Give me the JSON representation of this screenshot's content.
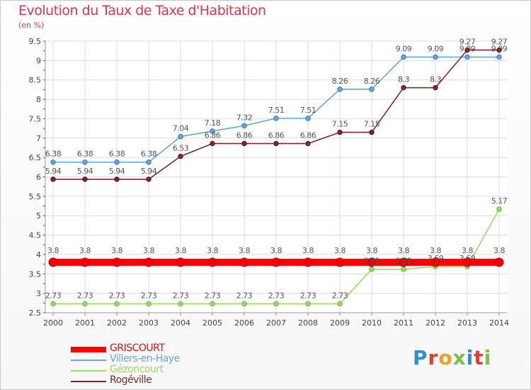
{
  "title": "Evolution du Taux de Taxe d'Habitation",
  "unit": "(en %)",
  "logo": [
    "P",
    "r",
    "o",
    "x",
    "i",
    "t",
    "i"
  ],
  "logo_colors": [
    "#2f8fd6",
    "#e8382f",
    "#f0a020",
    "#7ac143",
    "#2f8fd6",
    "#e8382f",
    "#7ac143"
  ],
  "chart_data": {
    "type": "line",
    "x": [
      "2000",
      "2001",
      "2002",
      "2003",
      "2004",
      "2005",
      "2006",
      "2007",
      "2008",
      "2009",
      "2010",
      "2011",
      "2012",
      "2013",
      "2014"
    ],
    "ylim": [
      2.5,
      9.5
    ],
    "yticks": [
      "2.5",
      "3",
      "3.5",
      "4",
      "4.5",
      "5",
      "5.5",
      "6",
      "6.5",
      "7",
      "7.5",
      "8",
      "8.5",
      "9",
      "9.5"
    ],
    "grid": true,
    "legend_position": "bottom-left",
    "series": [
      {
        "name": "GRISCOURT",
        "color": "#ff0000",
        "values": [
          3.8,
          3.8,
          3.8,
          3.8,
          3.8,
          3.8,
          3.8,
          3.8,
          3.8,
          3.8,
          3.8,
          3.8,
          3.8,
          3.8,
          3.8
        ],
        "labels": [
          "3.8",
          "3.8",
          "3.8",
          "3.8",
          "3.8",
          "3.8",
          "3.8",
          "3.8",
          "3.8",
          "3.8",
          "3.8",
          "3.8",
          "3.8",
          "3.8",
          "3.8"
        ]
      },
      {
        "name": "Villers-en-Haye",
        "color": "#6aa7d6",
        "values": [
          6.38,
          6.38,
          6.38,
          6.38,
          7.04,
          7.18,
          7.32,
          7.51,
          7.51,
          8.26,
          8.26,
          9.09,
          9.09,
          9.09,
          9.09
        ],
        "labels": [
          "6.38",
          "6.38",
          "6.38",
          "6.38",
          "7.04",
          "7.18",
          "7.32",
          "7.51",
          "7.51",
          "8.26",
          "8.26",
          "9.09",
          "9.09",
          "9.09",
          "9.09"
        ]
      },
      {
        "name": "Gézoncourt",
        "color": "#99dd66",
        "values": [
          2.73,
          2.73,
          2.73,
          2.73,
          2.73,
          2.73,
          2.73,
          2.73,
          2.73,
          2.73,
          3.62,
          3.62,
          3.69,
          3.69,
          5.17
        ],
        "labels": [
          "2.73",
          "2.73",
          "2.73",
          "2.73",
          "2.73",
          "2.73",
          "2.73",
          "2.73",
          "2.73",
          "2.73",
          "3.62",
          "3.62",
          "3.69",
          "3.69",
          "5.17"
        ]
      },
      {
        "name": "Rogéville",
        "color": "#7a2a2a",
        "values": [
          5.94,
          5.94,
          5.94,
          5.94,
          6.53,
          6.86,
          6.86,
          6.86,
          6.86,
          7.15,
          7.15,
          8.3,
          8.3,
          9.27,
          9.27
        ],
        "labels": [
          "5.94",
          "5.94",
          "5.94",
          "5.94",
          "6.53",
          "6.86",
          "6.86",
          "6.86",
          "6.86",
          "7.15",
          "7.15",
          "8.3",
          "8.3",
          "9.27",
          "9.27"
        ]
      }
    ]
  }
}
